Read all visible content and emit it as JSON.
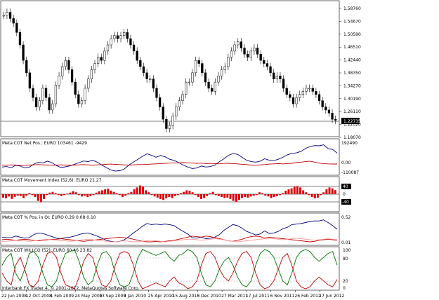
{
  "main": {
    "price_labels": [
      "1.58760",
      "1.54670",
      "1.50590",
      "1.46510",
      "1.42440",
      "1.38350",
      "1.34270",
      "1.30190",
      "1.26110",
      "1.22020",
      "1.18070"
    ],
    "current_price": "1.22735",
    "footer": "Interbank FX Trader 4, © 2001-2012, MetaQuotes Software Corp."
  },
  "panes": [
    {
      "title": "Meta COT Net Pos.: EURO 103461 -9429",
      "scale": [
        "192490",
        "0.00",
        "-110087"
      ]
    },
    {
      "title": "Meta COT Movement Index (52,6): EURO 21.27",
      "scale": [
        "40",
        "0",
        "-40"
      ]
    },
    {
      "title": "Meta COT % Pos. in OI: EURO 0.29 0.08 0.10",
      "scale": [
        "0.52",
        "0.01"
      ]
    },
    {
      "title": "Meta COT WILLCO (52): EURO 60.46 23.82",
      "scale": [
        "100",
        "80",
        "20",
        "0"
      ]
    }
  ],
  "x_axis_labels": [
    "22 Jun 2008",
    "12 Oct 2008",
    "1 Feb 2009",
    "24 May 2009",
    "13 Sep 2009",
    "3 Jan 2010",
    "25 Apr 2010",
    "15 Aug 2010",
    "5 Dec 2010",
    "27 Mar 2011",
    "17 Jul 2011",
    "6 Nov 2011",
    "26 Feb 2012",
    "17 Jun 2012"
  ],
  "chart_data": [
    {
      "type": "candlestick",
      "title": "",
      "series": [
        {
          "values": [
            1.565,
            1.575,
            1.555,
            1.54,
            1.51,
            1.47,
            1.42,
            1.38,
            1.33,
            1.3,
            1.27,
            1.29,
            1.33,
            1.3,
            1.26,
            1.28,
            1.34,
            1.37,
            1.4,
            1.42,
            1.39,
            1.35,
            1.31,
            1.28,
            1.29,
            1.33,
            1.36,
            1.39,
            1.41,
            1.43,
            1.42,
            1.45,
            1.47,
            1.49,
            1.5,
            1.49,
            1.5,
            1.51,
            1.49,
            1.47,
            1.45,
            1.42,
            1.4,
            1.38,
            1.36,
            1.36,
            1.33,
            1.3,
            1.27,
            1.23,
            1.2,
            1.21,
            1.24,
            1.27,
            1.29,
            1.31,
            1.35,
            1.35,
            1.38,
            1.42,
            1.41,
            1.38,
            1.35,
            1.33,
            1.32,
            1.35,
            1.37,
            1.39,
            1.4,
            1.43,
            1.45,
            1.47,
            1.48,
            1.46,
            1.44,
            1.43,
            1.45,
            1.46,
            1.44,
            1.42,
            1.41,
            1.4,
            1.38,
            1.36,
            1.37,
            1.36,
            1.33,
            1.31,
            1.3,
            1.28,
            1.3,
            1.31,
            1.32,
            1.33,
            1.33,
            1.32,
            1.31,
            1.29,
            1.27,
            1.26,
            1.25,
            1.23,
            1.227
          ]
        }
      ]
    },
    {
      "type": "line",
      "series": [
        {
          "color": "#000080",
          "values": [
            -40000,
            -35000,
            -48000,
            -22000,
            -30000,
            -50000,
            -42000,
            -10000,
            8000,
            2000,
            20000,
            5000,
            -25000,
            -45000,
            -38000,
            -28000,
            -12000,
            5000,
            22000,
            15000,
            30000,
            10000,
            -20000,
            -45000,
            -70000,
            -82000,
            -78000,
            -60000,
            -20000,
            10000,
            40000,
            70000,
            95000,
            80000,
            60000,
            78000,
            65000,
            40000,
            28000,
            5000,
            -20000,
            -40000,
            -55000,
            -50000,
            -30000,
            -40000,
            -35000,
            -20000,
            15000,
            45000,
            80000,
            98000,
            90000,
            60000,
            30000,
            15000,
            10000,
            20000,
            45000,
            30000,
            25000,
            40000,
            60000,
            85000,
            100000,
            105000,
            120000,
            150000,
            170000,
            180000,
            178000,
            188000,
            150000,
            140000,
            103461
          ]
        },
        {
          "color": "#c00000",
          "values": [
            -20000,
            -22000,
            -18000,
            -20000,
            -25000,
            -22000,
            -20000,
            -18000,
            -15000,
            -18000,
            -20000,
            -22000,
            -20000,
            -18000,
            -20000,
            -22000,
            -20000,
            -18000,
            -15000,
            -18000,
            -20000,
            -18000,
            -15000,
            -12000,
            -10000,
            -12000,
            -15000,
            -18000,
            -20000,
            -18000,
            -15000,
            -15000,
            -12000,
            -10000,
            -8000,
            -5000,
            -3000,
            0,
            2000,
            3000,
            5000,
            3000,
            0,
            -3000,
            0,
            -5000,
            -3000,
            -5000,
            -8000,
            -3000,
            -2000,
            -5000,
            -8000,
            -12000,
            -15000,
            -20000,
            -22000,
            -18000,
            -15000,
            -10000,
            -8000,
            -5000,
            -8000,
            -5000,
            -2000,
            5000,
            10000,
            15000,
            20000,
            10000,
            0,
            -5000,
            -8000,
            -9000,
            -9429
          ]
        }
      ],
      "ylim": [
        -110087,
        192490
      ]
    },
    {
      "type": "bar",
      "values": [
        -18,
        -22,
        -12,
        -25,
        -14,
        -8,
        -10,
        -20,
        -8,
        5,
        -5,
        -15,
        -35,
        -42,
        -25,
        -5,
        8,
        12,
        5,
        -5,
        -10,
        -5,
        3,
        8,
        15,
        10,
        -5,
        -12,
        -8,
        -15,
        -10,
        -5,
        8,
        15,
        20,
        25,
        28,
        18,
        12,
        5,
        -5,
        -15,
        -8,
        5,
        12,
        25,
        35,
        45,
        38,
        20,
        10,
        -5,
        -12,
        -18,
        -25,
        -30,
        -22,
        -15,
        -20,
        -10,
        -5,
        5,
        12,
        20,
        18,
        10,
        -5,
        -15,
        -25,
        -20,
        -10,
        5,
        12,
        -5,
        -10,
        -15,
        -20,
        -18,
        -25,
        -35,
        -40,
        -30,
        -20,
        -15,
        -18,
        -12,
        -8,
        -5,
        10,
        5,
        -8,
        -12,
        -20,
        -15,
        -10,
        -5,
        5,
        18,
        25,
        30,
        38,
        42,
        35,
        20,
        10,
        -5,
        -15,
        -22,
        -18,
        -5,
        10,
        25,
        35,
        30,
        21.27
      ],
      "ylim": [
        -55,
        55
      ]
    },
    {
      "type": "line",
      "series": [
        {
          "color": "#000080",
          "values": [
            0.14,
            0.13,
            0.13,
            0.16,
            0.14,
            0.12,
            0.13,
            0.19,
            0.22,
            0.21,
            0.18,
            0.15,
            0.12,
            0.11,
            0.13,
            0.14,
            0.16,
            0.19,
            0.21,
            0.22,
            0.19,
            0.16,
            0.12,
            0.08,
            0.06,
            0.05,
            0.06,
            0.09,
            0.15,
            0.22,
            0.28,
            0.35,
            0.4,
            0.38,
            0.39,
            0.38,
            0.39,
            0.38,
            0.36,
            0.3,
            0.25,
            0.2,
            0.13,
            0.12,
            0.14,
            0.11,
            0.12,
            0.14,
            0.19,
            0.27,
            0.33,
            0.38,
            0.36,
            0.31,
            0.25,
            0.22,
            0.18,
            0.2,
            0.26,
            0.21,
            0.22,
            0.25,
            0.3,
            0.33,
            0.38,
            0.39,
            0.4,
            0.42,
            0.44,
            0.45,
            0.45,
            0.47,
            0.42,
            0.36,
            0.29
          ]
        },
        {
          "color": "#c00000",
          "values": [
            0.09,
            0.1,
            0.09,
            0.08,
            0.09,
            0.1,
            0.09,
            0.08,
            0.07,
            0.08,
            0.09,
            0.1,
            0.1,
            0.11,
            0.1,
            0.09,
            0.08,
            0.07,
            0.06,
            0.07,
            0.08,
            0.09,
            0.1,
            0.11,
            0.12,
            0.13,
            0.14,
            0.13,
            0.12,
            0.1,
            0.08,
            0.06,
            0.05,
            0.05,
            0.06,
            0.05,
            0.06,
            0.07,
            0.08,
            0.1,
            0.12,
            0.14,
            0.16,
            0.15,
            0.14,
            0.16,
            0.15,
            0.13,
            0.11,
            0.09,
            0.07,
            0.06,
            0.08,
            0.1,
            0.13,
            0.15,
            0.16,
            0.15,
            0.12,
            0.14,
            0.13,
            0.12,
            0.11,
            0.1,
            0.09,
            0.08,
            0.07,
            0.06,
            0.05,
            0.06,
            0.08,
            0.09,
            0.1,
            0.09,
            0.08
          ]
        },
        {
          "color": "#ff9999",
          "values": [
            0.06,
            0.06,
            0.07,
            0.08,
            0.07,
            0.07,
            0.06,
            0.07,
            0.08,
            0.09,
            0.1,
            0.09,
            0.08,
            0.07,
            0.07,
            0.06,
            0.07,
            0.08,
            0.09,
            0.1,
            0.09,
            0.08,
            0.07,
            0.06,
            0.05,
            0.05,
            0.06,
            0.07,
            0.06,
            0.05,
            0.05,
            0.06,
            0.07,
            0.08,
            0.07,
            0.06,
            0.05,
            0.06,
            0.07,
            0.08,
            0.09,
            0.1,
            0.1,
            0.09,
            0.08,
            0.09,
            0.1,
            0.11,
            0.1,
            0.09,
            0.07,
            0.06,
            0.05,
            0.06,
            0.07,
            0.08,
            0.09,
            0.1,
            0.11,
            0.12,
            0.11,
            0.1,
            0.09,
            0.1,
            0.11,
            0.12,
            0.11,
            0.1,
            0.09,
            0.08,
            0.09,
            0.1,
            0.11,
            0.1,
            0.1
          ]
        }
      ],
      "ylim": [
        0.01,
        0.52
      ]
    },
    {
      "type": "line",
      "series": [
        {
          "color": "#007000",
          "values": [
            60,
            80,
            90,
            40,
            20,
            50,
            90,
            95,
            80,
            40,
            10,
            5,
            20,
            60,
            90,
            95,
            100,
            70,
            30,
            10,
            20,
            60,
            90,
            95,
            80,
            40,
            10,
            5,
            10,
            40,
            80,
            100,
            95,
            90,
            85,
            90,
            95,
            80,
            70,
            85,
            90,
            100,
            95,
            80,
            40,
            10,
            5,
            20,
            50,
            70,
            80,
            60,
            30,
            10,
            5,
            20,
            60,
            90,
            100,
            95,
            80,
            50,
            20,
            10,
            40,
            80,
            95,
            100,
            95,
            80,
            70,
            80,
            90,
            95,
            60
          ]
        },
        {
          "color": "#c00000",
          "values": [
            40,
            20,
            10,
            60,
            80,
            50,
            10,
            5,
            20,
            60,
            90,
            95,
            80,
            40,
            10,
            5,
            0,
            30,
            70,
            90,
            80,
            40,
            10,
            5,
            20,
            60,
            90,
            95,
            90,
            60,
            20,
            0,
            5,
            10,
            15,
            10,
            5,
            20,
            30,
            15,
            10,
            0,
            5,
            20,
            60,
            90,
            95,
            80,
            50,
            30,
            20,
            40,
            70,
            90,
            95,
            80,
            40,
            10,
            0,
            5,
            20,
            50,
            80,
            90,
            60,
            20,
            5,
            0,
            5,
            20,
            30,
            20,
            10,
            5,
            24
          ]
        }
      ],
      "ylim": [
        0,
        100
      ]
    }
  ]
}
